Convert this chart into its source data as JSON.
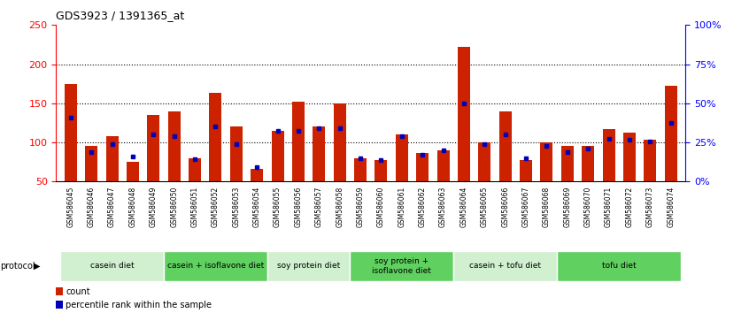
{
  "title": "GDS3923 / 1391365_at",
  "samples": [
    "GSM586045",
    "GSM586046",
    "GSM586047",
    "GSM586048",
    "GSM586049",
    "GSM586050",
    "GSM586051",
    "GSM586052",
    "GSM586053",
    "GSM586054",
    "GSM586055",
    "GSM586056",
    "GSM586057",
    "GSM586058",
    "GSM586059",
    "GSM586060",
    "GSM586061",
    "GSM586062",
    "GSM586063",
    "GSM586064",
    "GSM586065",
    "GSM586066",
    "GSM586067",
    "GSM586068",
    "GSM586069",
    "GSM586070",
    "GSM586071",
    "GSM586072",
    "GSM586073",
    "GSM586074"
  ],
  "counts": [
    175,
    95,
    108,
    75,
    135,
    140,
    80,
    163,
    120,
    66,
    115,
    152,
    120,
    150,
    80,
    78,
    110,
    87,
    90,
    222,
    100,
    140,
    78,
    100,
    95,
    95,
    117,
    113,
    103,
    172
  ],
  "percentile_ranks": [
    132,
    88,
    98,
    82,
    110,
    108,
    79,
    120,
    98,
    68,
    115,
    115,
    118,
    118,
    80,
    78,
    108,
    84,
    90,
    150,
    98,
    110,
    80,
    95,
    88,
    92,
    105,
    103,
    101,
    125
  ],
  "groups": [
    {
      "label": "casein diet",
      "start": 0,
      "end": 4,
      "color": "#d0f0d0"
    },
    {
      "label": "casein + isoflavone diet",
      "start": 5,
      "end": 9,
      "color": "#60d060"
    },
    {
      "label": "soy protein diet",
      "start": 10,
      "end": 13,
      "color": "#d0f0d0"
    },
    {
      "label": "soy protein +\nisoflavone diet",
      "start": 14,
      "end": 18,
      "color": "#60d060"
    },
    {
      "label": "casein + tofu diet",
      "start": 19,
      "end": 23,
      "color": "#d0f0d0"
    },
    {
      "label": "tofu diet",
      "start": 24,
      "end": 29,
      "color": "#60d060"
    }
  ],
  "ylim": [
    50,
    250
  ],
  "yticks_left": [
    50,
    100,
    150,
    200,
    250
  ],
  "bar_color": "#cc2200",
  "dot_color": "#0000bb",
  "background_color": "#ffffff"
}
